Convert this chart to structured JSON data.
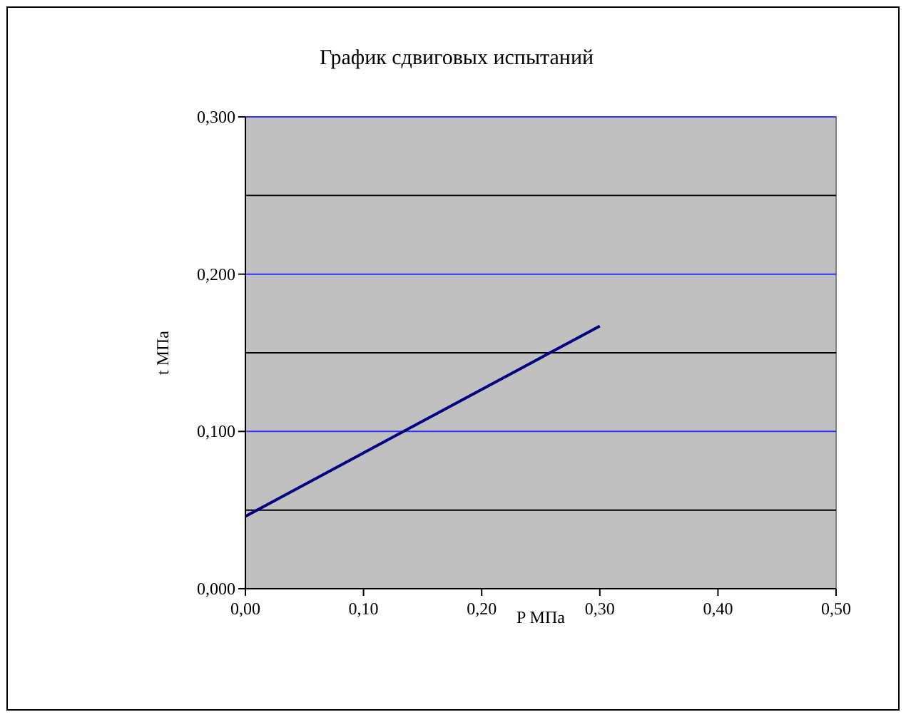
{
  "chart_data": {
    "type": "line",
    "title": "График сдвиговых испытаний",
    "xlabel": "P МПа",
    "ylabel": "t МПа",
    "x": [
      0,
      0.3
    ],
    "series": [
      {
        "color": "#000080",
        "values": [
          0.046,
          0.167
        ]
      }
    ],
    "xlim": [
      0,
      0.5
    ],
    "xticks": [
      {
        "value": 0,
        "label": "0,00"
      },
      {
        "value": 0.1,
        "label": "0,10"
      },
      {
        "value": 0.2,
        "label": "0,20"
      },
      {
        "value": 0.3,
        "label": "0,30"
      },
      {
        "value": 0.4,
        "label": "0,40"
      },
      {
        "value": 0.5,
        "label": "0,50"
      }
    ],
    "ylim": [
      0,
      0.3
    ],
    "yticks": [
      {
        "value": 0,
        "label": "0,000"
      },
      {
        "value": 0.05,
        "label": null
      },
      {
        "value": 0.1,
        "label": "0,100"
      },
      {
        "value": 0.15,
        "label": null
      },
      {
        "value": 0.2,
        "label": "0,200"
      },
      {
        "value": 0.25,
        "label": null
      },
      {
        "value": 0.3,
        "label": "0,300"
      }
    ],
    "grid": "y",
    "marker": "none",
    "line_style": "solid"
  }
}
